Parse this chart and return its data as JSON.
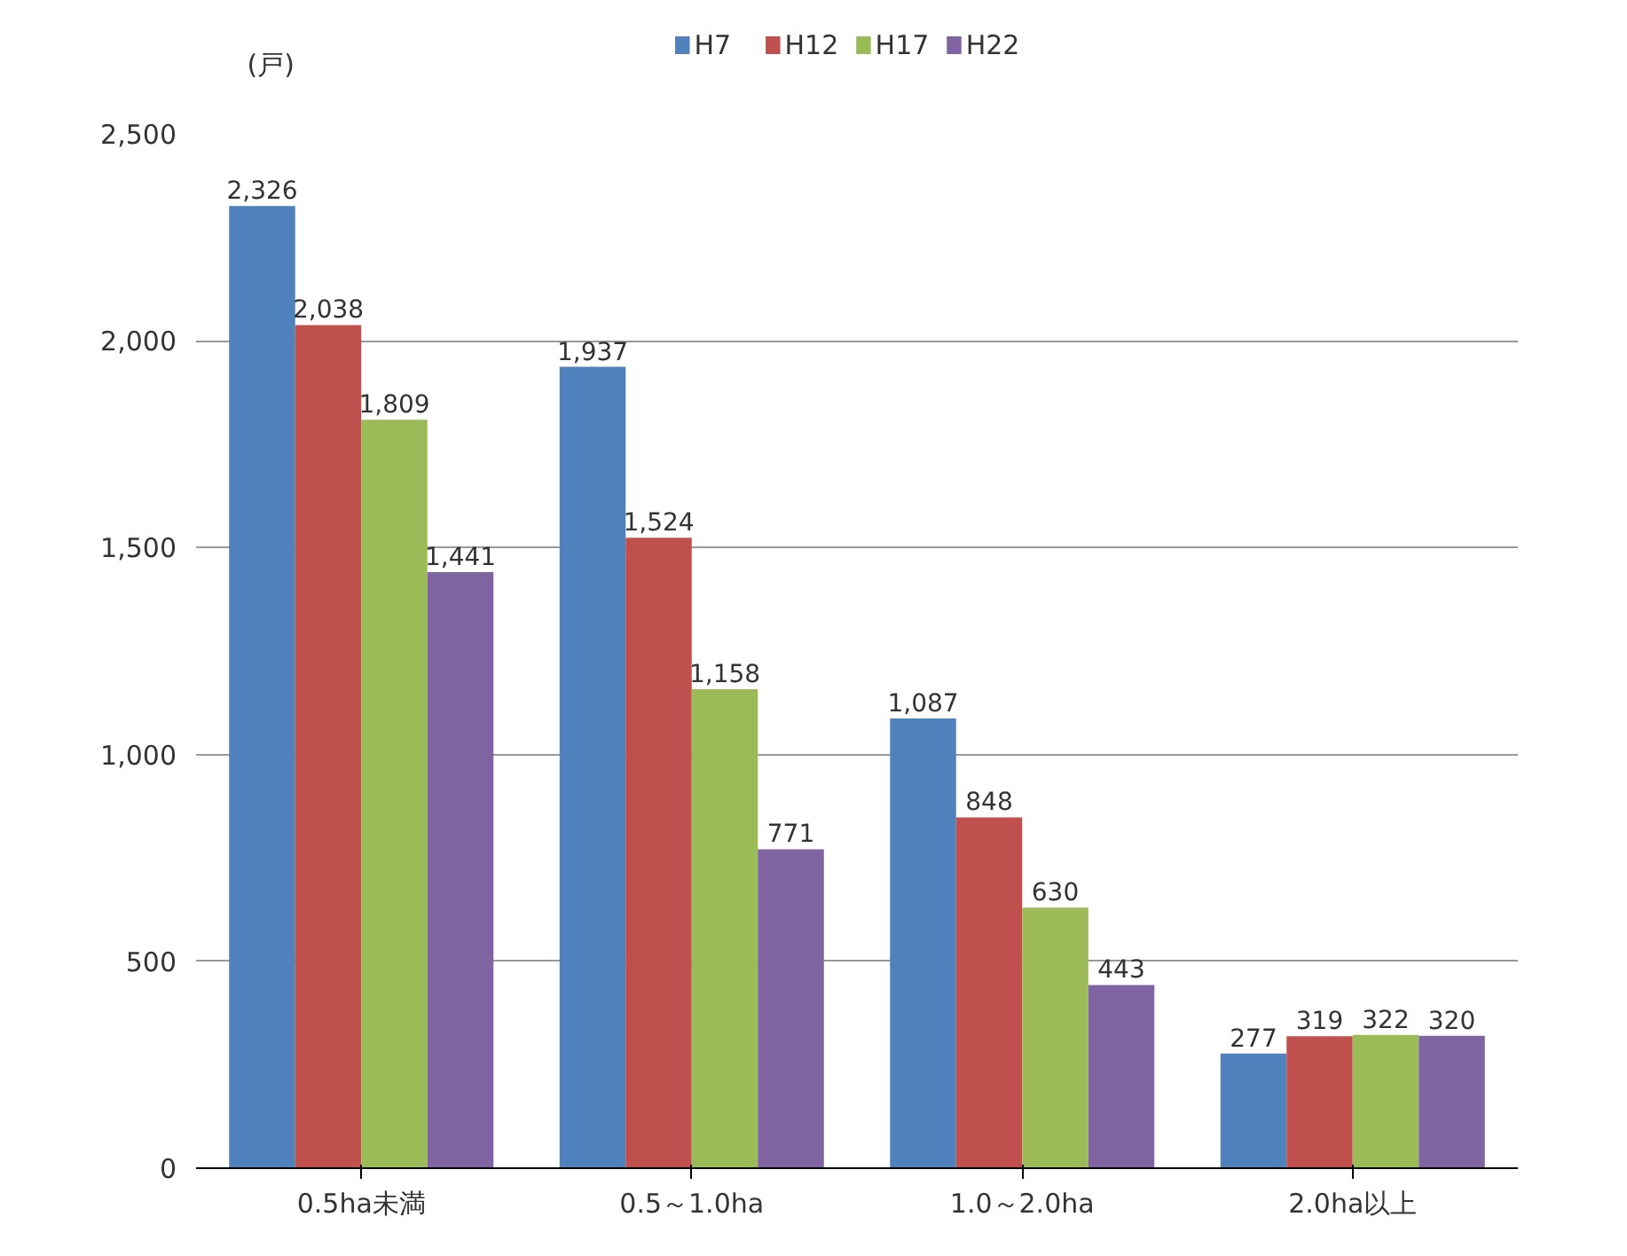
{
  "chart_data": {
    "type": "bar",
    "annotations": [
      "(戸)"
    ],
    "categories": [
      "0.5ha未満",
      "0.5～1.0ha",
      "1.0～2.0ha",
      "2.0ha以上"
    ],
    "series": [
      {
        "name": "H7",
        "color": "#4f81bd",
        "values": [
          2326,
          1937,
          1087,
          277
        ],
        "value_labels": [
          "2,326",
          "1,937",
          "1,087",
          "277"
        ]
      },
      {
        "name": "H12",
        "color": "#c0504d",
        "values": [
          2038,
          1524,
          848,
          319
        ],
        "value_labels": [
          "2,038",
          "1,524",
          "848",
          "319"
        ]
      },
      {
        "name": "H17",
        "color": "#9bbb59",
        "values": [
          1809,
          1158,
          630,
          322
        ],
        "value_labels": [
          "1,809",
          "1,158",
          "630",
          "322"
        ]
      },
      {
        "name": "H22",
        "color": "#8064a2",
        "values": [
          1441,
          771,
          443,
          320
        ],
        "value_labels": [
          "1,441",
          "771",
          "443",
          "320"
        ]
      }
    ],
    "ylim": [
      0,
      2500
    ],
    "yticks": [
      {
        "value": 0,
        "label": "0"
      },
      {
        "value": 500,
        "label": "500"
      },
      {
        "value": 1000,
        "label": "1,000"
      },
      {
        "value": 1500,
        "label": "1,500"
      },
      {
        "value": 2000,
        "label": "2,000"
      },
      {
        "value": 2500,
        "label": "2,500"
      }
    ],
    "grid": "y",
    "legend": "top"
  }
}
